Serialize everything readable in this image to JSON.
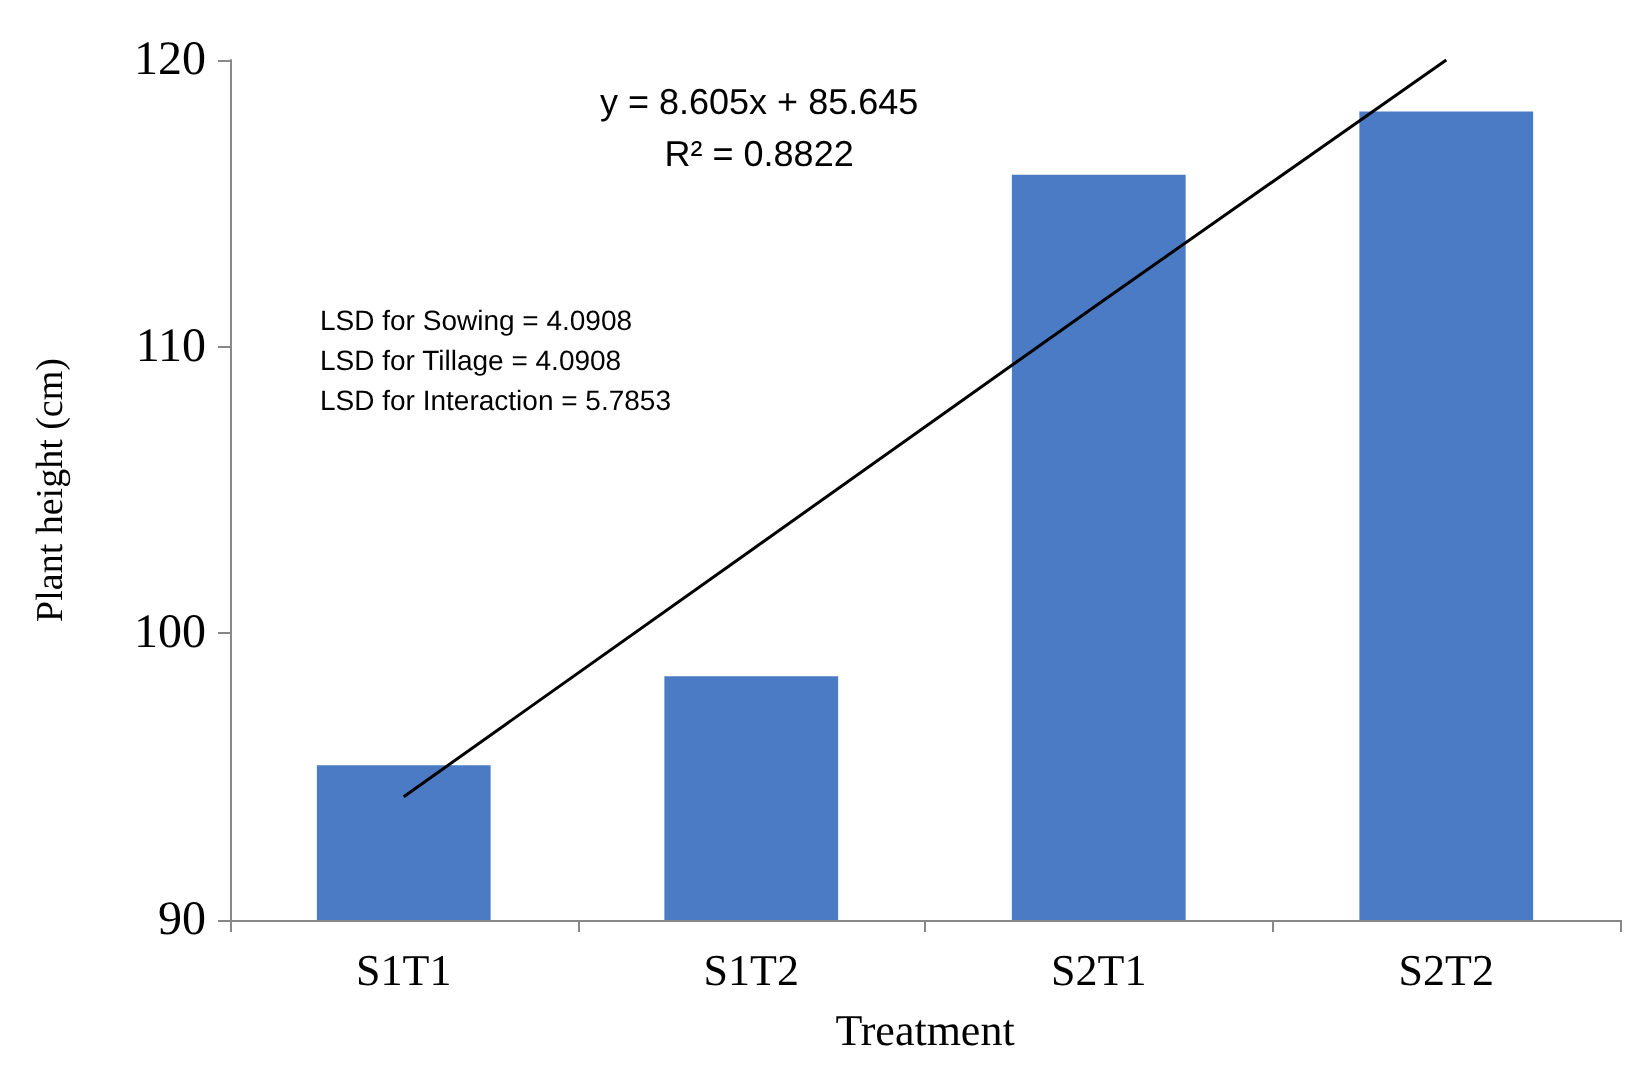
{
  "chart_data": {
    "type": "bar",
    "xlabel": "Treatment",
    "ylabel": "Plant height (cm)",
    "categories": [
      "S1T1",
      "S1T2",
      "S2T1",
      "S2T2"
    ],
    "series": [
      {
        "color": "#4a7bc4",
        "values": [
          95.4,
          98.5,
          116.0,
          118.2
        ]
      },
      {
        "type": "line",
        "color": "#000000",
        "values": [
          94.3,
          102.9,
          111.5,
          120
        ]
      }
    ],
    "ylim": [
      90,
      120
    ],
    "yticks": [
      90,
      100,
      110,
      120
    ],
    "grid": false,
    "marker": "none",
    "annotations": [
      "y = 8.605x + 85.645\nR² = 0.8822",
      "LSD for Sowing = 4.0908\nLSD for Tillage = 4.0908\nLSD for Interaction = 5.7853"
    ]
  }
}
